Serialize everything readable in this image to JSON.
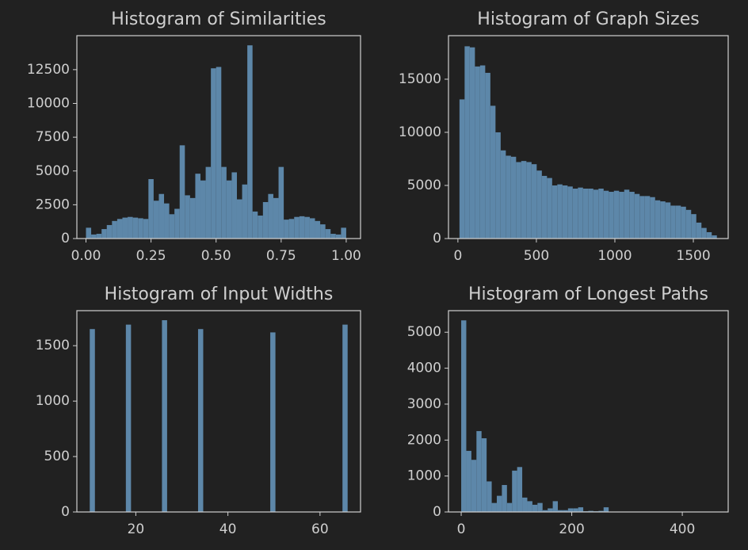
{
  "chart_data": [
    {
      "type": "histogram",
      "title": "Histogram of Similarities",
      "color": "#5d87a9",
      "bins": [
        0,
        0.02,
        0.04,
        0.06,
        0.08,
        0.1,
        0.12,
        0.14,
        0.16,
        0.18,
        0.2,
        0.22,
        0.24,
        0.26,
        0.28,
        0.3,
        0.32,
        0.34,
        0.36,
        0.38,
        0.4,
        0.42,
        0.44,
        0.46,
        0.48,
        0.5,
        0.52,
        0.54,
        0.56,
        0.58,
        0.6,
        0.62,
        0.64,
        0.66,
        0.68,
        0.7,
        0.72,
        0.74,
        0.76,
        0.78,
        0.8,
        0.82,
        0.84,
        0.86,
        0.88,
        0.9,
        0.92,
        0.94,
        0.96,
        0.98,
        1.0
      ],
      "values": [
        800,
        300,
        350,
        700,
        1000,
        1300,
        1450,
        1550,
        1600,
        1550,
        1500,
        1450,
        4400,
        2800,
        3300,
        2600,
        1800,
        2200,
        6900,
        3200,
        3000,
        4800,
        4300,
        5300,
        12600,
        12700,
        5300,
        4300,
        4900,
        2900,
        4000,
        14300,
        2000,
        1700,
        2700,
        3300,
        3000,
        5300,
        1400,
        1450,
        1600,
        1650,
        1600,
        1500,
        1300,
        1050,
        700,
        350,
        300,
        800
      ],
      "xlim": [
        -0.035,
        1.055
      ],
      "ylim": [
        0,
        15015
      ],
      "xticks": [
        {
          "value": 0,
          "label": "0.00"
        },
        0.25,
        {
          "value": 0.5,
          "label": "0.50"
        },
        0.75,
        {
          "value": 1,
          "label": "1.00"
        }
      ],
      "yticks": [
        0,
        2500,
        5000,
        7500,
        10000,
        12500
      ]
    },
    {
      "type": "histogram",
      "title": "Histogram of Graph Sizes",
      "color": "#5d87a9",
      "bins": [
        10,
        42.8,
        75.6,
        108.4,
        141.2,
        174,
        206.8,
        239.6,
        272.4,
        305.2,
        338,
        370.8,
        403.6,
        436.4,
        469.2,
        502,
        534.8,
        567.6,
        600.4,
        633.2,
        666,
        698.8,
        731.6,
        764.4,
        797.2,
        830,
        862.8,
        895.6,
        928.4,
        961.2,
        994,
        1026.8,
        1059.6,
        1092.4,
        1125.2,
        1158,
        1190.8,
        1223.6,
        1256.4,
        1289.2,
        1322,
        1354.8,
        1387.6,
        1420.4,
        1453.2,
        1486,
        1518.8,
        1551.6,
        1584.4,
        1617.2,
        1650
      ],
      "values": [
        13100,
        18100,
        18000,
        16200,
        16300,
        15600,
        12500,
        10000,
        8300,
        7800,
        7700,
        7200,
        7300,
        7200,
        7000,
        6400,
        5900,
        5700,
        5000,
        5100,
        5000,
        4900,
        4700,
        4800,
        4700,
        4700,
        4600,
        4700,
        4500,
        4400,
        4500,
        4400,
        4600,
        4400,
        4200,
        4000,
        4000,
        3900,
        3600,
        3500,
        3400,
        3100,
        3100,
        3000,
        2700,
        2300,
        1500,
        1000,
        600,
        300
      ],
      "xlim": [
        -60,
        1722
      ],
      "ylim": [
        0,
        19100
      ],
      "xticks": [
        0,
        500,
        1000,
        1500
      ],
      "yticks": [
        0,
        5000,
        10000,
        15000
      ]
    },
    {
      "type": "histogram",
      "title": "Histogram of Input Widths",
      "color": "#5d87a9",
      "bins": [
        10,
        11.12,
        12.24,
        13.36,
        14.48,
        15.6,
        16.72,
        17.84,
        18.96,
        20.08,
        21.2,
        22.32,
        23.44,
        24.56,
        25.68,
        26.8,
        27.92,
        29.04,
        30.16,
        31.28,
        32.4,
        33.52,
        34.64,
        35.76,
        36.88,
        38,
        39.12,
        40.24,
        41.36,
        42.48,
        43.6,
        44.72,
        45.84,
        46.96,
        48.08,
        49.2,
        50.32,
        51.44,
        52.56,
        53.68,
        54.8,
        55.92,
        57.04,
        58.16,
        59.28,
        60.4,
        61.52,
        62.64,
        63.76,
        64.88,
        66
      ],
      "values": [
        1650,
        0,
        0,
        0,
        0,
        0,
        0,
        1690,
        0,
        0,
        0,
        0,
        0,
        0,
        1730,
        0,
        0,
        0,
        0,
        0,
        0,
        1650,
        0,
        0,
        0,
        0,
        0,
        0,
        0,
        0,
        0,
        0,
        0,
        0,
        0,
        1620,
        0,
        0,
        0,
        0,
        0,
        0,
        0,
        0,
        0,
        0,
        0,
        0,
        0,
        1690
      ],
      "xlim": [
        7.2,
        68.8
      ],
      "ylim": [
        0,
        1816
      ],
      "xticks": [
        20,
        40,
        60
      ],
      "yticks": [
        0,
        500,
        1000,
        1500
      ]
    },
    {
      "type": "histogram",
      "title": "Histogram of Longest Paths",
      "color": "#5d87a9",
      "bins": [
        0,
        9.2,
        18.4,
        27.6,
        36.8,
        46,
        55.2,
        64.4,
        73.6,
        82.8,
        92,
        101.2,
        110.4,
        119.6,
        128.8,
        138,
        147.2,
        156.4,
        165.6,
        174.8,
        184,
        193.2,
        202.4,
        211.6,
        220.8,
        230,
        239.2,
        248.4,
        257.6,
        266.8,
        276,
        285.2,
        294.4,
        303.6,
        312.8,
        322,
        331.2,
        340.4,
        349.6,
        358.8,
        368,
        377.2,
        386.4,
        395.6,
        404.8,
        414,
        423.2,
        432.4,
        441.6,
        450.8,
        460
      ],
      "values": [
        5330,
        1700,
        1450,
        2250,
        2050,
        850,
        250,
        450,
        750,
        250,
        1150,
        1250,
        400,
        300,
        200,
        250,
        50,
        100,
        300,
        50,
        50,
        100,
        100,
        130,
        20,
        30,
        20,
        30,
        130,
        10,
        0,
        0,
        0,
        0,
        0,
        0,
        0,
        0,
        0,
        0,
        0,
        0,
        0,
        0,
        0,
        0,
        0,
        0,
        0,
        5
      ],
      "xlim": [
        -23,
        483
      ],
      "ylim": [
        0,
        5600
      ],
      "xticks": [
        0,
        200,
        400
      ],
      "yticks": [
        0,
        1000,
        2000,
        3000,
        4000,
        5000
      ]
    }
  ]
}
